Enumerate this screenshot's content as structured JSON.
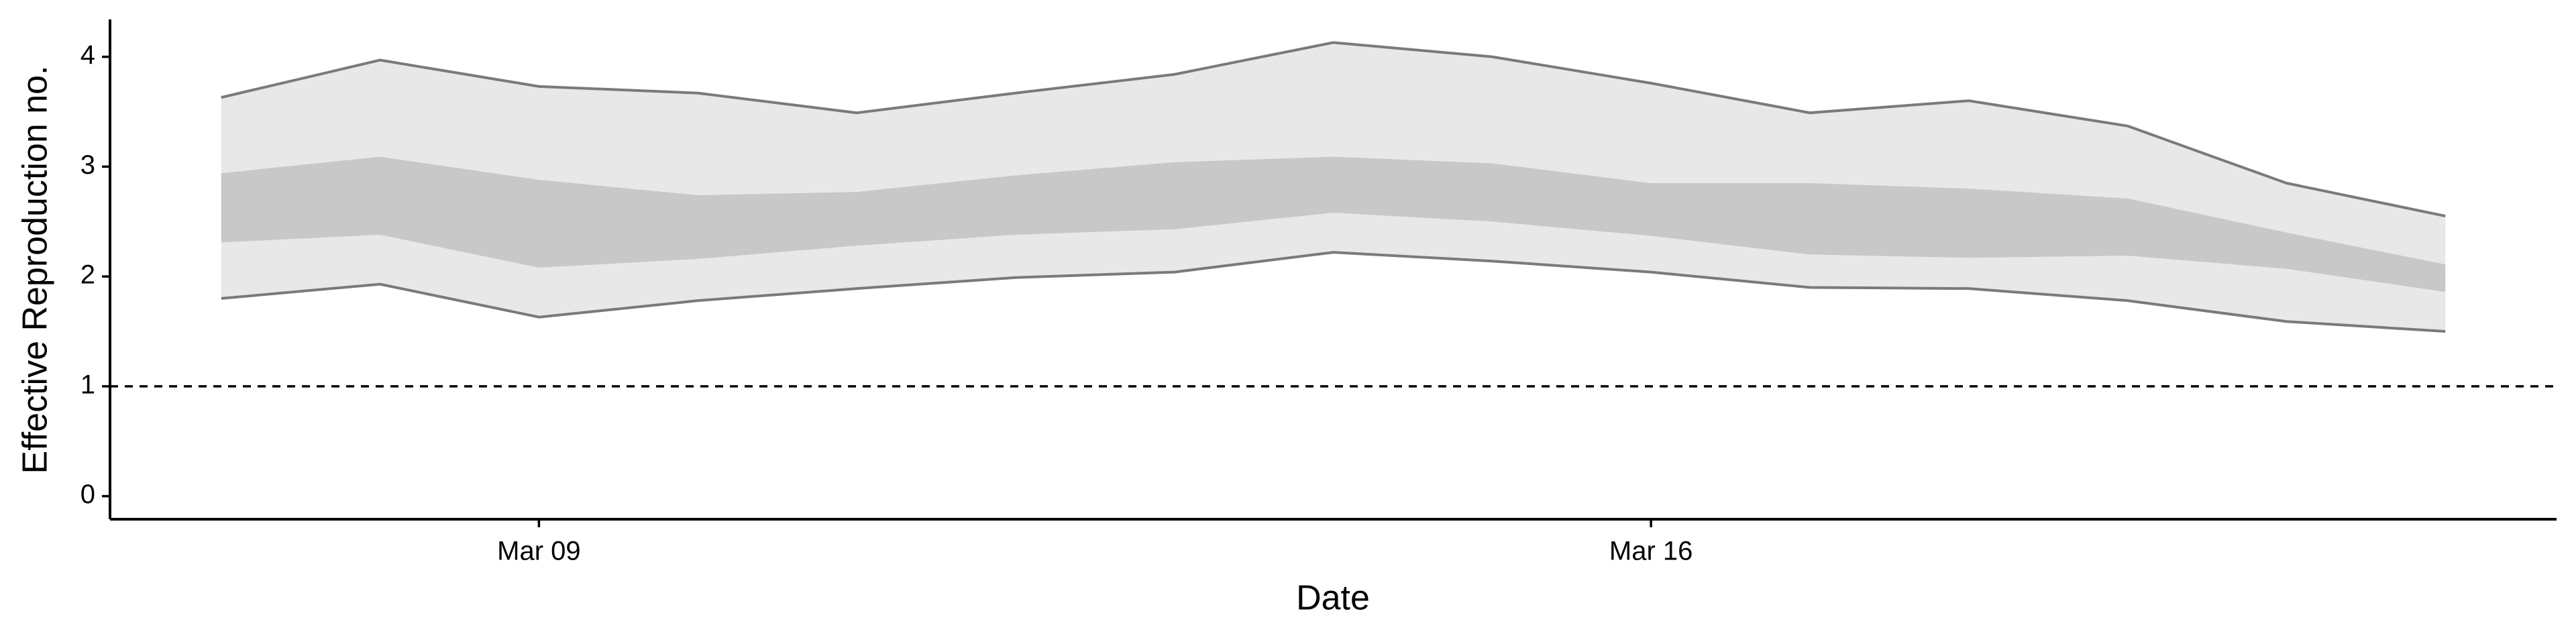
{
  "chart_data": {
    "type": "band",
    "x_label": "Date",
    "y_label": "Effective Reproduction no.",
    "x": [
      7,
      8,
      9,
      10,
      11,
      12,
      13,
      14,
      15,
      16,
      17,
      18,
      19,
      20,
      21
    ],
    "series": [
      {
        "color": "#e8e8e8",
        "line_color": "#7a7a7a",
        "upper": [
          3.63,
          3.97,
          3.73,
          3.67,
          3.49,
          3.67,
          3.84,
          4.13,
          4.0,
          3.76,
          3.49,
          3.6,
          3.37,
          2.85,
          2.55
        ],
        "lower": [
          1.8,
          1.93,
          1.63,
          1.78,
          1.89,
          1.99,
          2.04,
          2.22,
          2.14,
          2.04,
          1.9,
          1.89,
          1.78,
          1.59,
          1.5
        ]
      },
      {
        "color": "#c8c8c8",
        "upper": [
          2.94,
          3.09,
          2.88,
          2.74,
          2.77,
          2.92,
          3.04,
          3.09,
          3.03,
          2.85,
          2.85,
          2.8,
          2.71,
          2.4,
          2.11
        ],
        "lower": [
          2.31,
          2.38,
          2.08,
          2.16,
          2.28,
          2.38,
          2.43,
          2.58,
          2.5,
          2.37,
          2.2,
          2.17,
          2.19,
          2.07,
          1.86
        ]
      }
    ],
    "hline": 1,
    "xlim": [
      6.3,
      21.7
    ],
    "ylim": [
      -0.21,
      4.34
    ],
    "xticks": [
      {
        "value": 9,
        "label": "Mar 09"
      },
      {
        "value": 16,
        "label": "Mar 16"
      }
    ],
    "yticks": [
      0,
      1,
      2,
      3,
      4
    ]
  }
}
